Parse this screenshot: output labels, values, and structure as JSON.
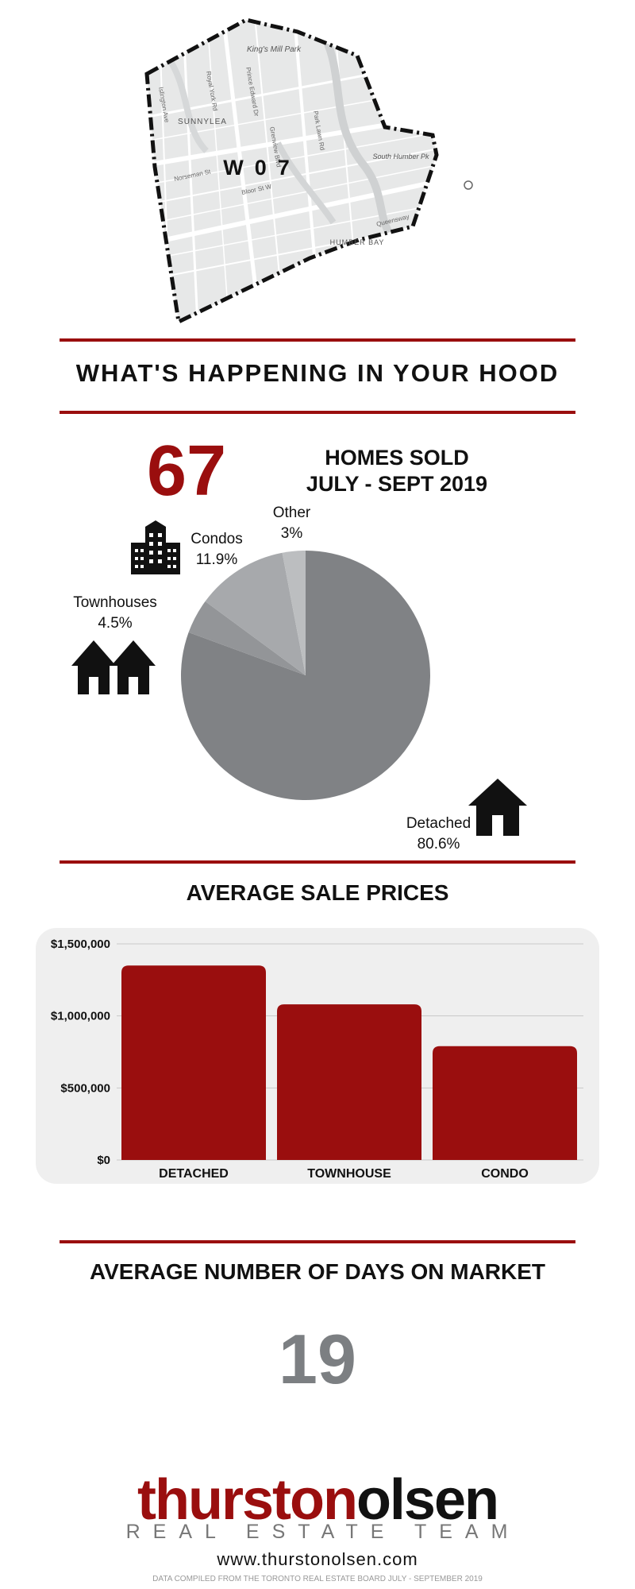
{
  "map": {
    "district_code": "W07",
    "labels": [
      "King's Mill Park",
      "SUNNYLEA",
      "South Humber Pk",
      "HUMBER BAY",
      "Norseman St",
      "Bloor St W",
      "Queensway",
      "Prince Edward Dr",
      "Royal York Rd",
      "Park Lawn Rd",
      "Islington Ave",
      "Grenview Blvd"
    ]
  },
  "headline": "WHAT'S HAPPENING IN YOUR HOOD",
  "homes_sold": {
    "count": "67",
    "label_line1": "HOMES SOLD",
    "label_line2": "JULY - SEPT 2019"
  },
  "icons": [
    "condo-building-icon",
    "townhouses-icon",
    "detached-house-icon"
  ],
  "colors": {
    "brand_red": "#9a0e0e",
    "pie_detached": "#808285",
    "pie_townhouses": "#939598",
    "pie_condos": "#a7a9ac",
    "pie_other": "#bcbec0",
    "days_gray": "#7c7f82",
    "panel_bg": "#efefef"
  },
  "pie_labels": {
    "condos_name": "Condos",
    "condos_value": "11.9%",
    "other_name": "Other",
    "other_value": "3%",
    "townhouses_name": "Townhouses",
    "townhouses_value": "4.5%",
    "detached_name": "Detached",
    "detached_value": "80.6%"
  },
  "avg_price_title": "AVERAGE SALE PRICES",
  "chart_data": [
    {
      "type": "pie",
      "categories": [
        "Detached",
        "Townhouses",
        "Condos",
        "Other"
      ],
      "values": [
        80.6,
        4.5,
        11.9,
        3
      ],
      "colors": [
        "#808285",
        "#939598",
        "#a7a9ac",
        "#bcbec0"
      ]
    },
    {
      "type": "bar",
      "categories": [
        "DETACHED",
        "TOWNHOUSE",
        "CONDO"
      ],
      "values": [
        1350000,
        1080000,
        790000
      ],
      "yticks": [
        "$0",
        "$500,000",
        "$1,000,000",
        "$1,500,000"
      ],
      "ylim": [
        0,
        1500000
      ],
      "grid": true,
      "bar_color": "#9a0e0e"
    }
  ],
  "days_title": "AVERAGE NUMBER OF DAYS ON MARKET",
  "days_value": "19",
  "brand": {
    "name_part1": "thurston",
    "name_part2": "olsen",
    "tagline": "REAL ESTATE TEAM",
    "url": "www.thurstonolsen.com",
    "source": "DATA COMPILED FROM THE TORONTO REAL ESTATE BOARD JULY - SEPTEMBER 2019"
  }
}
